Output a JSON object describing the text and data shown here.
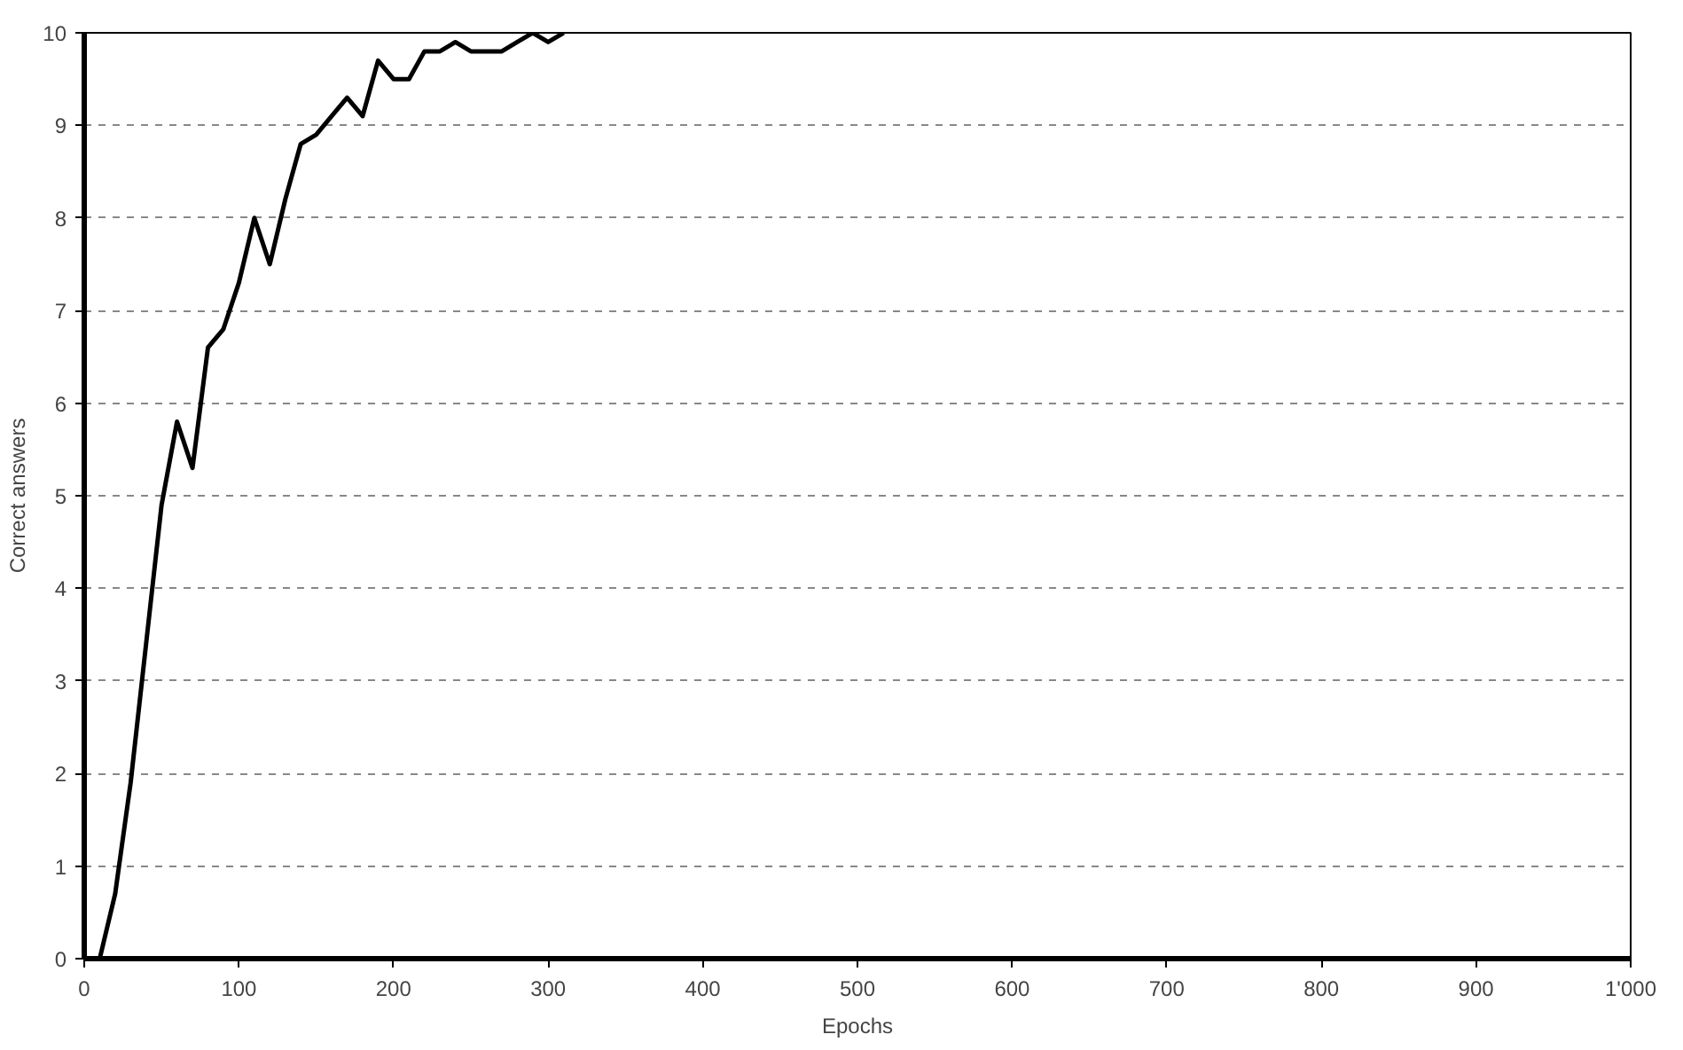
{
  "chart_data": {
    "type": "line",
    "xlabel": "Epochs",
    "ylabel": "Correct answers",
    "x": [
      10,
      20,
      30,
      40,
      50,
      60,
      70,
      80,
      90,
      100,
      110,
      120,
      130,
      140,
      150,
      160,
      170,
      180,
      190,
      200,
      210,
      220,
      230,
      240,
      250,
      260,
      270,
      280,
      290,
      300,
      310
    ],
    "series": [
      {
        "color": "#000000",
        "values": [
          0,
          0.7,
          1.9,
          3.4,
          4.9,
          5.8,
          5.3,
          6.6,
          6.8,
          7.3,
          8.0,
          7.5,
          8.2,
          8.8,
          8.9,
          9.1,
          9.3,
          9.1,
          9.7,
          9.5,
          9.5,
          9.8,
          9.8,
          9.9,
          9.8,
          9.8,
          9.8,
          9.9,
          10,
          9.9,
          10
        ]
      }
    ],
    "xlim": [
      0,
      1000
    ],
    "ylim": [
      0,
      10
    ],
    "xticks": [
      0,
      100,
      200,
      300,
      400,
      500,
      600,
      700,
      800,
      900,
      {
        "value": 1000,
        "label": "1'000"
      }
    ],
    "yticks": [
      0,
      1,
      2,
      3,
      4,
      5,
      6,
      7,
      8,
      9,
      10
    ],
    "grid": "y",
    "marker": "none",
    "line_style": "solid"
  }
}
